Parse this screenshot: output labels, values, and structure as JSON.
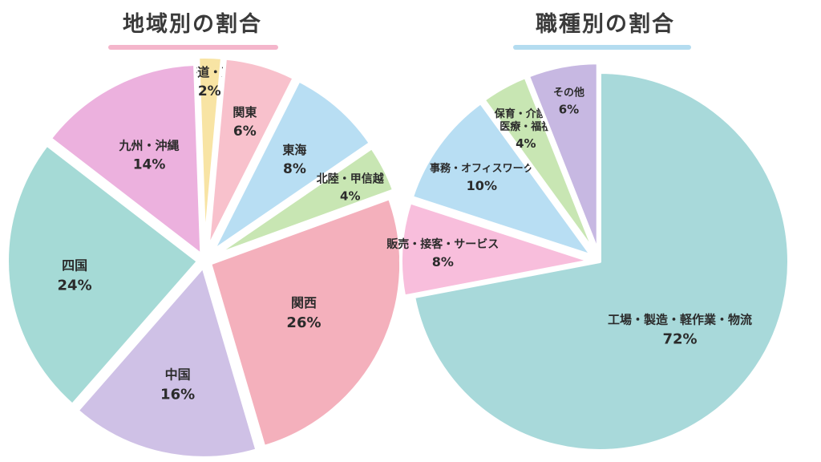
{
  "chart_data": [
    {
      "type": "pie",
      "title": "地域別の割合",
      "underline_color": "#f4b6cb",
      "slices": [
        {
          "label": "北海道・東北",
          "value": 2,
          "display": "2%",
          "color": "#f8e4a4"
        },
        {
          "label": "関東",
          "value": 6,
          "display": "6%",
          "color": "#f8c1cc"
        },
        {
          "label": "東海",
          "value": 8,
          "display": "8%",
          "color": "#b8def3"
        },
        {
          "label": "北陸・甲信越",
          "value": 4,
          "display": "4%",
          "color": "#c8e6b3"
        },
        {
          "label": "関西",
          "value": 26,
          "display": "26%",
          "color": "#f4b0bc"
        },
        {
          "label": "中国",
          "value": 16,
          "display": "16%",
          "color": "#cfc1e6"
        },
        {
          "label": "四国",
          "value": 24,
          "display": "24%",
          "color": "#a5dad6"
        },
        {
          "label": "九州・沖縄",
          "value": 14,
          "display": "14%",
          "color": "#ecb1de"
        }
      ]
    },
    {
      "type": "pie",
      "title": "職種別の割合",
      "underline_color": "#b4dcf0",
      "slices": [
        {
          "label": "工場・製造・軽作業・物流",
          "value": 72,
          "display": "72%",
          "color": "#a8d9da"
        },
        {
          "label": "販売・接客・サービス",
          "value": 8,
          "display": "8%",
          "color": "#f8bedc"
        },
        {
          "label": "事務・オフィスワーク",
          "value": 10,
          "display": "10%",
          "color": "#b8def3"
        },
        {
          "label": "保育・介護・\n医療・福祉",
          "value": 4,
          "display": "4%",
          "color": "#c8e6b3"
        },
        {
          "label": "その他",
          "value": 6,
          "display": "6%",
          "color": "#c7b8e2"
        }
      ]
    }
  ]
}
